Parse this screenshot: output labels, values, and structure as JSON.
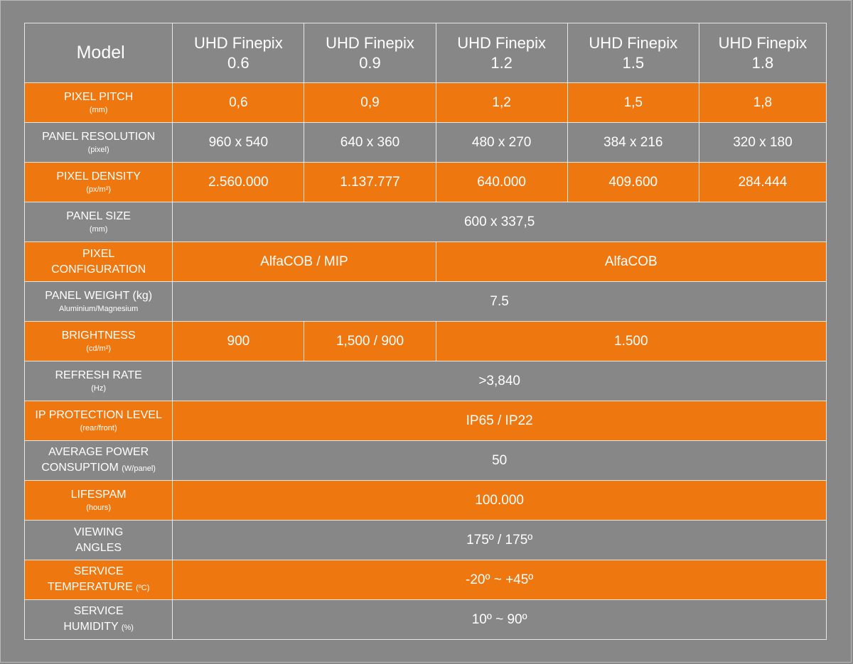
{
  "header": {
    "model_label": "Model",
    "models": [
      {
        "name": "UHD Finepix",
        "version": "0.6"
      },
      {
        "name": "UHD Finepix",
        "version": "0.9"
      },
      {
        "name": "UHD Finepix",
        "version": "1.2"
      },
      {
        "name": "UHD Finepix",
        "version": "1.5"
      },
      {
        "name": "UHD Finepix",
        "version": "1.8"
      }
    ]
  },
  "rows": {
    "pixel_pitch": {
      "label": "PIXEL PITCH",
      "unit": "(mm)",
      "values": [
        "0,6",
        "0,9",
        "1,2",
        "1,5",
        "1,8"
      ]
    },
    "panel_resolution": {
      "label": "PANEL RESOLUTION",
      "unit": "(pixel)",
      "values": [
        "960 x 540",
        "640 x 360",
        "480 x 270",
        "384 x 216",
        "320 x 180"
      ]
    },
    "pixel_density": {
      "label": "PIXEL DENSITY",
      "unit": "(px/m²)",
      "values": [
        "2.560.000",
        "1.137.777",
        "640.000",
        "409.600",
        "284.444"
      ]
    },
    "panel_size": {
      "label": "PANEL SIZE",
      "unit": "(mm)",
      "value": "600 x 337,5"
    },
    "pixel_configuration": {
      "label_line1": "PIXEL",
      "label_line2": "CONFIGURATION",
      "value_a": "AlfaCOB / MIP",
      "value_b": "AlfaCOB"
    },
    "panel_weight": {
      "label": "PANEL WEIGHT (kg)",
      "unit": "Aluminium/Magnesium",
      "value": "7.5"
    },
    "brightness": {
      "label": "BRIGHTNESS",
      "unit": "(cd/m²)",
      "value_a": "900",
      "value_b": "1,500 / 900",
      "value_c": "1.500"
    },
    "refresh_rate": {
      "label": "REFRESH RATE",
      "unit": "(Hz)",
      "value": ">3,840"
    },
    "ip_protection": {
      "label": "IP PROTECTION LEVEL",
      "unit": "(rear/front)",
      "value": "IP65 / IP22"
    },
    "power": {
      "label_line1": "AVERAGE POWER",
      "label_line2": "CONSUPTIOM",
      "unit": "(W/panel)",
      "value": "50"
    },
    "lifespan": {
      "label": "LIFESPAM",
      "unit": "(hours)",
      "value": "100.000"
    },
    "viewing_angles": {
      "label_line1": "VIEWING",
      "label_line2": "ANGLES",
      "value": "175º / 175º"
    },
    "service_temperature": {
      "label_line1": "SERVICE",
      "label_line2": "TEMPERATURE",
      "unit": "(ºC)",
      "value": "-20º ~ +45º"
    },
    "service_humidity": {
      "label_line1": "SERVICE",
      "label_line2": "HUMIDITY",
      "unit": "(%)",
      "value": "10º ~ 90º"
    }
  },
  "colors": {
    "orange": "#ee7710",
    "gray": "#878787",
    "border": "#e6e6e6"
  }
}
